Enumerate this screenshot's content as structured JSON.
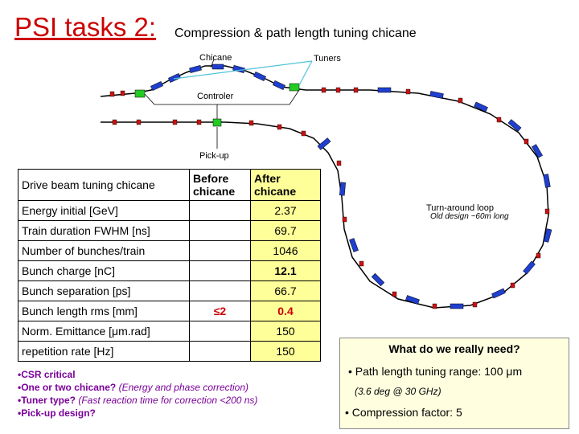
{
  "title": {
    "main": "PSI tasks 2:",
    "sub": "Compression & path length tuning chicane"
  },
  "diagram": {
    "labels": {
      "chicane": "Chicane",
      "tuners": "Tuners",
      "controler": "Controler",
      "pickup": "Pick-up",
      "turnaround": "Turn-around loop",
      "old_design": "Old design ~60m long"
    }
  },
  "table": {
    "headers": {
      "label": "Drive beam tuning chicane",
      "before": "Before chicane",
      "after": "After chicane"
    },
    "rows": [
      {
        "label": "Energy initial [GeV]",
        "before": "",
        "after": "2.37"
      },
      {
        "label": "Train duration FWHM [ns]",
        "before": "",
        "after": "69.7"
      },
      {
        "label": "Number of bunches/train",
        "before": "",
        "after": "1046"
      },
      {
        "label": "Bunch charge [nC]",
        "before": "",
        "after": "12.1"
      },
      {
        "label": "Bunch separation [ps]",
        "before": "",
        "after": "66.7"
      },
      {
        "label": "Bunch length rms [mm]",
        "before": "≤2",
        "after": "0.4"
      },
      {
        "label": "Norm. Emittance [μm.rad]",
        "before": "",
        "after": "150"
      },
      {
        "label": "repetition rate  [Hz]",
        "before": "",
        "after": "150"
      }
    ]
  },
  "bullets": [
    {
      "lead": "•CSR critical",
      "note": ""
    },
    {
      "lead": "•One or two chicane?",
      "note": "(Energy and phase correction)"
    },
    {
      "lead": "•Tuner type?",
      "note": "(Fast reaction time for correction <200 ns)"
    },
    {
      "lead": "•Pick-up design?",
      "note": ""
    }
  ],
  "need": {
    "title": "What do we really need?",
    "line1": "• Path length tuning range:  100 μm",
    "line2": "(3.6 deg @ 30 GHz)",
    "line3": "• Compression factor: 5"
  },
  "colors": {
    "title": "#cc0000",
    "bullets": "#7a0099",
    "dipole": "#1f3fcf",
    "quad": "#cc1111",
    "tuner": "#22cc22",
    "highlight": "#ffff99"
  }
}
